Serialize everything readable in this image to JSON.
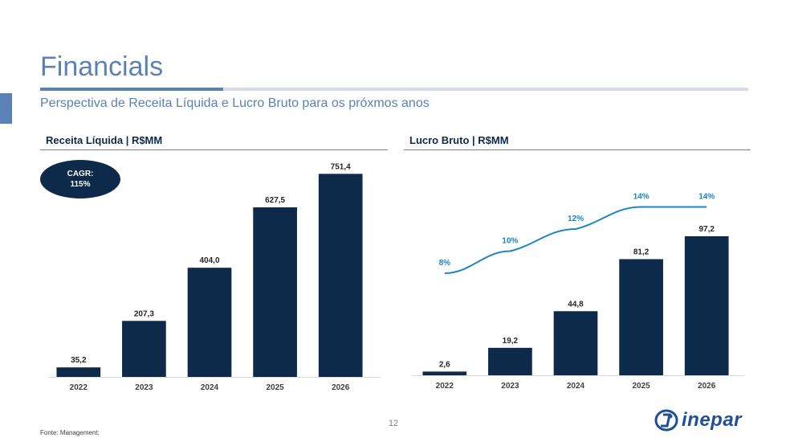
{
  "slide": {
    "title": "Financials",
    "subtitle": "Perspectiva de Receita Líquida e Lucro Bruto para os próxmos anos",
    "page_number": "12",
    "source": "Fonte: Management;",
    "logo_text": "inepar",
    "colors": {
      "accent": "#5b82b5",
      "bar": "#0d2a4a",
      "line": "#1b85c6"
    }
  },
  "cagr": {
    "label": "CAGR:",
    "value": "115%"
  },
  "chart_data": [
    {
      "type": "bar",
      "title": "Receita Líquida | R$MM",
      "categories": [
        "2022",
        "2023",
        "2024",
        "2025",
        "2026"
      ],
      "values": [
        35.2,
        207.3,
        404.0,
        627.5,
        751.4
      ],
      "value_labels": [
        "35,2",
        "207,3",
        "404,0",
        "627,5",
        "751,4"
      ],
      "ylim": [
        0,
        800
      ],
      "grid": false
    },
    {
      "type": "bar",
      "title": "Lucro Bruto | R$MM",
      "categories": [
        "2022",
        "2023",
        "2024",
        "2025",
        "2026"
      ],
      "values": [
        2.6,
        19.2,
        44.8,
        81.2,
        97.2
      ],
      "value_labels": [
        "2,6",
        "19,2",
        "44,8",
        "81,2",
        "97,2"
      ],
      "ylim": [
        0,
        100
      ],
      "grid": false,
      "line_series": {
        "values": [
          8,
          10,
          12,
          14,
          14
        ],
        "value_labels": [
          "8%",
          "10%",
          "12%",
          "14%",
          "14%"
        ],
        "ylim": [
          4,
          16
        ]
      }
    }
  ]
}
